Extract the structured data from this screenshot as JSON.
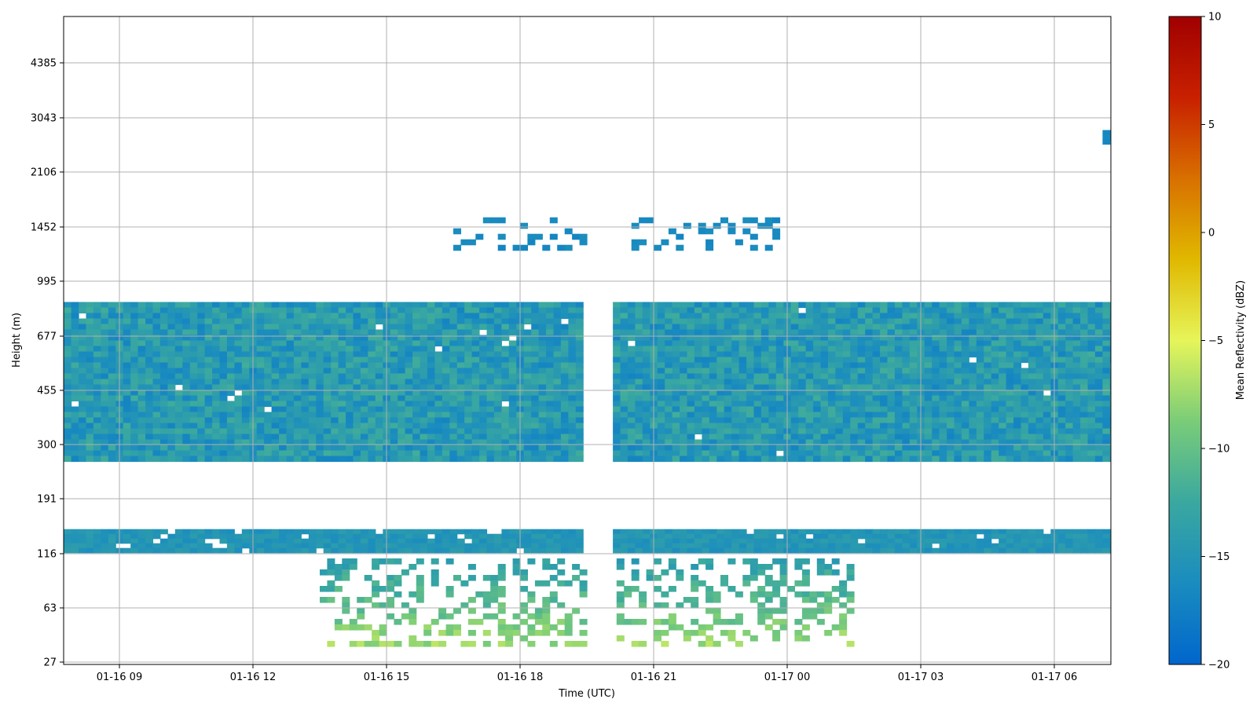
{
  "chart_data": {
    "type": "heatmap",
    "title": "",
    "xlabel": "Time (UTC)",
    "ylabel": "Height (m)",
    "x_ticks": [
      "01-16 09",
      "01-16 12",
      "01-16 15",
      "01-16 18",
      "01-16 21",
      "01-17 00",
      "01-17 03",
      "01-17 06"
    ],
    "y_ticks": [
      "27",
      "63",
      "116",
      "191",
      "300",
      "455",
      "677",
      "995",
      "1452",
      "2106",
      "3043",
      "4385"
    ],
    "colorbar": {
      "label": "Mean Reflectivity (dBZ)",
      "range": [
        -20,
        10
      ],
      "ticks": [
        "10",
        "5",
        "0",
        "−5",
        "−10",
        "−15",
        "−20"
      ],
      "tick_values": [
        10,
        5,
        0,
        -5,
        -10,
        -15,
        -20
      ],
      "colormap": [
        "#0066cc",
        "#1a8cbf",
        "#3aa8a0",
        "#7acc78",
        "#e6f55a",
        "#e0b800",
        "#d87000",
        "#c82000",
        "#a00000"
      ]
    },
    "grid": true,
    "data_gaps": [
      {
        "start": "01-16 19:35",
        "end": "01-16 20:05"
      }
    ],
    "layers": [
      {
        "name": "main-band",
        "height_range_m": [
          270,
          860
        ],
        "time_range": [
          "01-16 07:45",
          "01-17 07:30"
        ],
        "dBZ_range": [
          -17,
          -12
        ]
      },
      {
        "name": "lower-band",
        "height_range_m": [
          120,
          145
        ],
        "time_range": [
          "01-16 07:45",
          "01-17 07:30"
        ],
        "dBZ_range": [
          -16,
          -14
        ]
      },
      {
        "name": "near-surface",
        "height_range_m": [
          35,
          110
        ],
        "time_range": [
          "01-16 13:30",
          "01-17 01:30"
        ],
        "dBZ_range": [
          -15,
          -6
        ]
      },
      {
        "name": "upper-cloud",
        "height_range_m": [
          1250,
          1550
        ],
        "time_range": [
          "01-16 16:30",
          "01-16 23:50"
        ],
        "dBZ_range": [
          -17,
          -16
        ]
      },
      {
        "name": "high-echo",
        "height_range_m": [
          2600,
          2800
        ],
        "time_range": [
          "01-17 07:05",
          "01-17 07:25"
        ],
        "dBZ_range": [
          -17,
          -16
        ]
      }
    ]
  }
}
